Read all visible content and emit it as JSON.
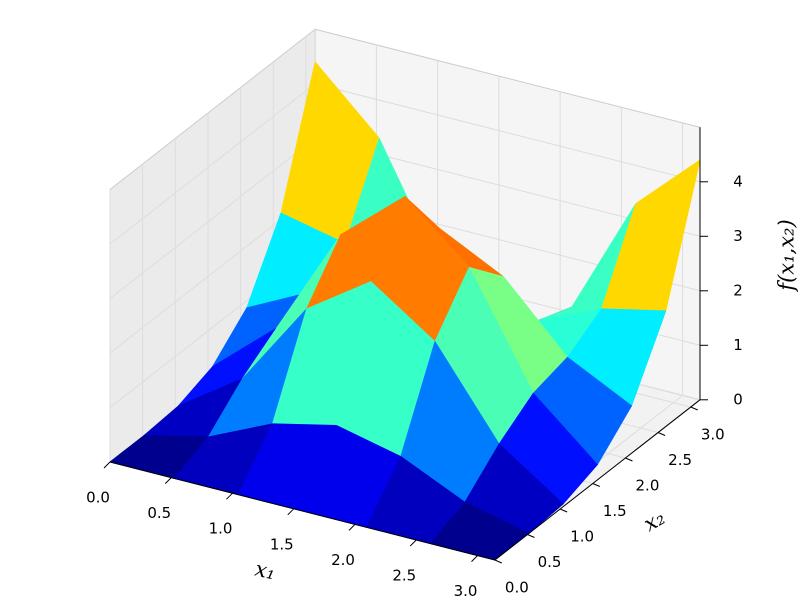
{
  "chart_data": {
    "type": "surface",
    "xlabel": "x₁",
    "ylabel": "x₂",
    "zlabel": "f(x₁,x₂)",
    "x1": [
      0,
      0.5236,
      1.0472,
      1.5708,
      2.0944,
      2.618,
      3.1416
    ],
    "x2": [
      0,
      0.5236,
      1.0472,
      1.5708,
      2.0944,
      2.618,
      3.1416
    ],
    "z": [
      [
        0,
        0,
        0.05,
        0.28,
        0.87,
        2.12,
        4.4
      ],
      [
        0,
        0.27,
        0.85,
        1.29,
        1.46,
        1.86,
        3.3
      ],
      [
        0,
        0.81,
        2.43,
        3.3,
        2.64,
        1.34,
        1.1
      ],
      [
        0,
        1.08,
        3.23,
        4.3,
        3.23,
        1.08,
        0
      ],
      [
        0,
        0.81,
        2.43,
        3.3,
        2.64,
        1.34,
        1.1
      ],
      [
        0,
        0.27,
        0.85,
        1.29,
        1.46,
        1.86,
        3.3
      ],
      [
        0,
        0,
        0.05,
        0.28,
        0.87,
        2.12,
        4.4
      ]
    ],
    "xlim": [
      0,
      3.1416
    ],
    "ylim": [
      0,
      3.1416
    ],
    "zlim": [
      0,
      5
    ],
    "xticks": [
      {
        "value": 0,
        "label": "0.0"
      },
      0.5,
      {
        "value": 1,
        "label": "1.0"
      },
      1.5,
      {
        "value": 2,
        "label": "2.0"
      },
      2.5,
      {
        "value": 3,
        "label": "3.0"
      }
    ],
    "yticks": [
      {
        "value": 0,
        "label": "0.0"
      },
      0.5,
      {
        "value": 1,
        "label": "1.0"
      },
      1.5,
      {
        "value": 2,
        "label": "2.0"
      },
      2.5,
      {
        "value": 3,
        "label": "3.0"
      }
    ],
    "zticks": [
      0,
      1,
      2,
      3,
      4
    ],
    "colormap": "jet",
    "grid": true
  }
}
